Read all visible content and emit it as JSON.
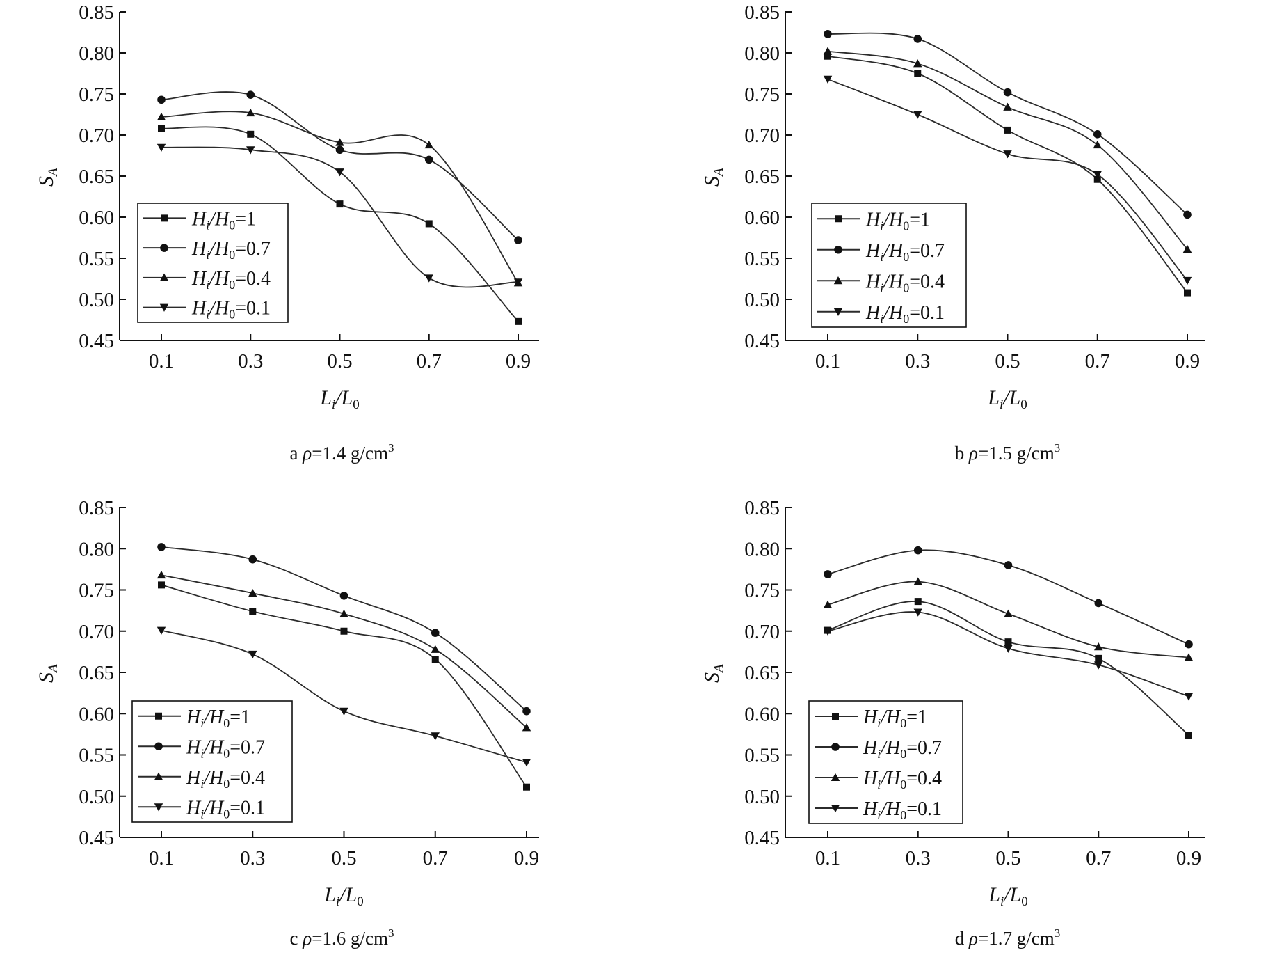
{
  "chart_data": [
    {
      "type": "line",
      "panel": "a",
      "caption": {
        "prefix": "a ",
        "symbol": "ρ",
        "value": "=1.4 g/cm",
        "sup": "3"
      },
      "xlabel": {
        "main": "L",
        "sub1": "i",
        "slash": "/L",
        "sub2": "0"
      },
      "ylabel": {
        "main": "S",
        "sub": "A"
      },
      "x": [
        0.1,
        0.3,
        0.5,
        0.7,
        0.9
      ],
      "x_ticks": [
        "0.1",
        "0.3",
        "0.5",
        "0.7",
        "0.9"
      ],
      "y_ticks": [
        "0.45",
        "0.50",
        "0.55",
        "0.60",
        "0.65",
        "0.70",
        "0.75",
        "0.80",
        "0.85"
      ],
      "ylim": [
        0.45,
        0.85
      ],
      "legend_placement": "bottom-left",
      "series": [
        {
          "name": {
            "a": "H",
            "sub1": "i",
            "b": "/H",
            "sub2": "0",
            "c": "=1"
          },
          "marker": "square",
          "values": [
            0.708,
            0.701,
            0.616,
            0.592,
            0.473
          ]
        },
        {
          "name": {
            "a": "H",
            "sub1": "i",
            "b": "/H",
            "sub2": "0",
            "c": "=0.7"
          },
          "marker": "circle",
          "values": [
            0.743,
            0.749,
            0.682,
            0.67,
            0.572
          ]
        },
        {
          "name": {
            "a": "H",
            "sub1": "i",
            "b": "/H",
            "sub2": "0",
            "c": "=0.4"
          },
          "marker": "triangle-up",
          "values": [
            0.722,
            0.727,
            0.691,
            0.688,
            0.52
          ]
        },
        {
          "name": {
            "a": "H",
            "sub1": "i",
            "b": "/H",
            "sub2": "0",
            "c": "=0.1"
          },
          "marker": "triangle-down",
          "values": [
            0.685,
            0.682,
            0.655,
            0.526,
            0.521
          ]
        }
      ]
    },
    {
      "type": "line",
      "panel": "b",
      "caption": {
        "prefix": "b ",
        "symbol": "ρ",
        "value": "=1.5 g/cm",
        "sup": "3"
      },
      "xlabel": {
        "main": "L",
        "sub1": "i",
        "slash": "/L",
        "sub2": "0"
      },
      "ylabel": {
        "main": "S",
        "sub": "A"
      },
      "x": [
        0.1,
        0.3,
        0.5,
        0.7,
        0.9
      ],
      "x_ticks": [
        "0.1",
        "0.3",
        "0.5",
        "0.7",
        "0.9"
      ],
      "y_ticks": [
        "0.45",
        "0.50",
        "0.55",
        "0.60",
        "0.65",
        "0.70",
        "0.75",
        "0.80",
        "0.85"
      ],
      "ylim": [
        0.45,
        0.85
      ],
      "legend_placement": "bottom-left",
      "series": [
        {
          "name": {
            "a": "H",
            "sub1": "i",
            "b": "/H",
            "sub2": "0",
            "c": "=1"
          },
          "marker": "square",
          "values": [
            0.796,
            0.775,
            0.706,
            0.646,
            0.508
          ]
        },
        {
          "name": {
            "a": "H",
            "sub1": "i",
            "b": "/H",
            "sub2": "0",
            "c": "=0.7"
          },
          "marker": "circle",
          "values": [
            0.823,
            0.817,
            0.752,
            0.701,
            0.603
          ]
        },
        {
          "name": {
            "a": "H",
            "sub1": "i",
            "b": "/H",
            "sub2": "0",
            "c": "=0.4"
          },
          "marker": "triangle-up",
          "values": [
            0.802,
            0.787,
            0.734,
            0.688,
            0.561
          ]
        },
        {
          "name": {
            "a": "H",
            "sub1": "i",
            "b": "/H",
            "sub2": "0",
            "c": "=0.1"
          },
          "marker": "triangle-down",
          "values": [
            0.768,
            0.725,
            0.677,
            0.652,
            0.523
          ]
        }
      ]
    },
    {
      "type": "line",
      "panel": "c",
      "caption": {
        "prefix": "c ",
        "symbol": "ρ",
        "value": "=1.6 g/cm",
        "sup": "3"
      },
      "xlabel": {
        "main": "L",
        "sub1": "i",
        "slash": "/L",
        "sub2": "0"
      },
      "ylabel": {
        "main": "S",
        "sub": "A"
      },
      "x": [
        0.1,
        0.3,
        0.5,
        0.7,
        0.9
      ],
      "x_ticks": [
        "0.1",
        "0.3",
        "0.5",
        "0.7",
        "0.9"
      ],
      "y_ticks": [
        "0.45",
        "0.50",
        "0.55",
        "0.60",
        "0.65",
        "0.70",
        "0.75",
        "0.80",
        "0.85"
      ],
      "ylim": [
        0.45,
        0.85
      ],
      "legend_placement": "bottom-left",
      "series": [
        {
          "name": {
            "a": "H",
            "sub1": "i",
            "b": "/H",
            "sub2": "0",
            "c": "=1"
          },
          "marker": "square",
          "values": [
            0.756,
            0.724,
            0.7,
            0.666,
            0.511
          ]
        },
        {
          "name": {
            "a": "H",
            "sub1": "i",
            "b": "/H",
            "sub2": "0",
            "c": "=0.7"
          },
          "marker": "circle",
          "values": [
            0.802,
            0.787,
            0.743,
            0.698,
            0.603
          ]
        },
        {
          "name": {
            "a": "H",
            "sub1": "i",
            "b": "/H",
            "sub2": "0",
            "c": "=0.4"
          },
          "marker": "triangle-up",
          "values": [
            0.768,
            0.746,
            0.721,
            0.678,
            0.583
          ]
        },
        {
          "name": {
            "a": "H",
            "sub1": "i",
            "b": "/H",
            "sub2": "0",
            "c": "=0.1"
          },
          "marker": "triangle-down",
          "values": [
            0.701,
            0.672,
            0.603,
            0.573,
            0.541
          ]
        }
      ]
    },
    {
      "type": "line",
      "panel": "d",
      "caption": {
        "prefix": "d ",
        "symbol": "ρ",
        "value": "=1.7 g/cm",
        "sup": "3"
      },
      "xlabel": {
        "main": "L",
        "sub1": "i",
        "slash": "/L",
        "sub2": "0"
      },
      "ylabel": {
        "main": "S",
        "sub": "A"
      },
      "x": [
        0.1,
        0.3,
        0.5,
        0.7,
        0.9
      ],
      "x_ticks": [
        "0.1",
        "0.3",
        "0.5",
        "0.7",
        "0.9"
      ],
      "y_ticks": [
        "0.45",
        "0.50",
        "0.55",
        "0.60",
        "0.65",
        "0.70",
        "0.75",
        "0.80",
        "0.85"
      ],
      "ylim": [
        0.45,
        0.85
      ],
      "legend_placement": "bottom-left",
      "series": [
        {
          "name": {
            "a": "H",
            "sub1": "i",
            "b": "/H",
            "sub2": "0",
            "c": "=1"
          },
          "marker": "square",
          "values": [
            0.701,
            0.736,
            0.687,
            0.667,
            0.574
          ]
        },
        {
          "name": {
            "a": "H",
            "sub1": "i",
            "b": "/H",
            "sub2": "0",
            "c": "=0.7"
          },
          "marker": "circle",
          "values": [
            0.769,
            0.798,
            0.78,
            0.734,
            0.684
          ]
        },
        {
          "name": {
            "a": "H",
            "sub1": "i",
            "b": "/H",
            "sub2": "0",
            "c": "=0.4"
          },
          "marker": "triangle-up",
          "values": [
            0.732,
            0.76,
            0.721,
            0.681,
            0.668
          ]
        },
        {
          "name": {
            "a": "H",
            "sub1": "i",
            "b": "/H",
            "sub2": "0",
            "c": "=0.1"
          },
          "marker": "triangle-down",
          "values": [
            0.7,
            0.723,
            0.679,
            0.659,
            0.621
          ]
        }
      ]
    }
  ],
  "colors": {
    "ink": "#111111",
    "line": "#2b2b2b",
    "background": "#ffffff"
  }
}
